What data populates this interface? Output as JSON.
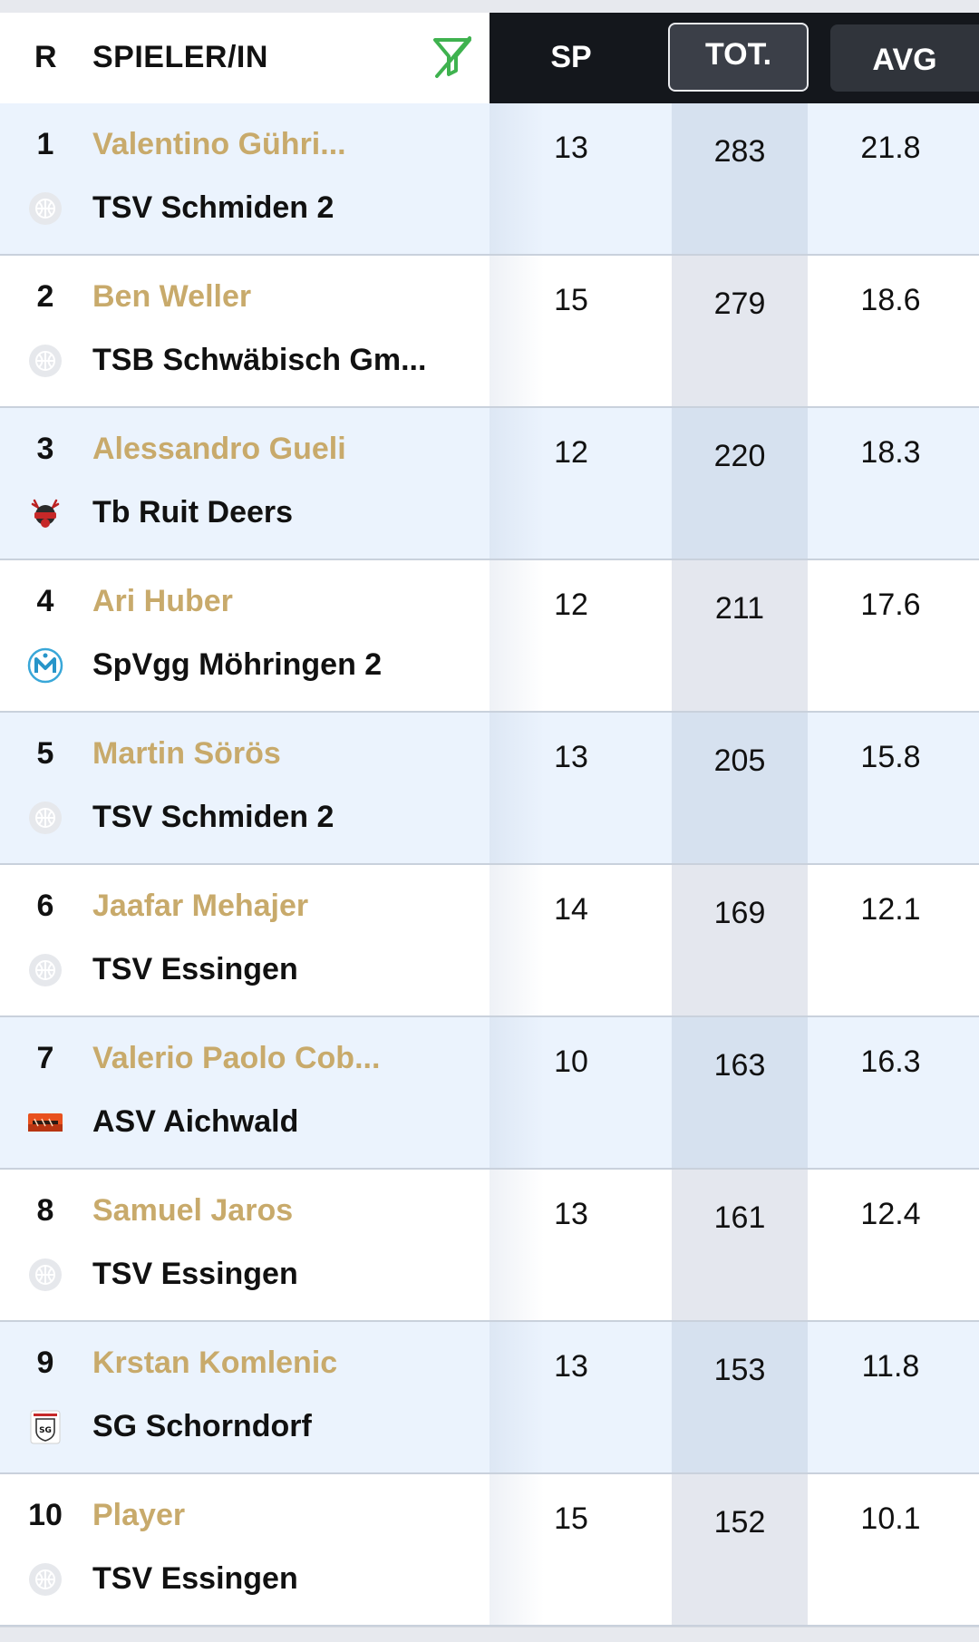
{
  "header": {
    "rank": "R",
    "player": "SPIELER/IN",
    "sp": "SP",
    "tot": "TOT.",
    "avg": "AVG",
    "filter_icon": "filter-slash-icon",
    "accent": "#3fb24f"
  },
  "colors": {
    "player_name": "#c8aa6b",
    "header_dark": "#14171c",
    "row_highlight": "#ebf3fd"
  },
  "rows": [
    {
      "rank": "1",
      "name": "Valentino Gühri...",
      "team": "TSV Schmiden 2",
      "logo": "basketball-placeholder-icon",
      "sp": "13",
      "tot": "283",
      "avg": "21.8"
    },
    {
      "rank": "2",
      "name": "Ben Weller",
      "team": "TSB Schwäbisch Gm...",
      "logo": "basketball-placeholder-icon",
      "sp": "15",
      "tot": "279",
      "avg": "18.6"
    },
    {
      "rank": "3",
      "name": "Alessandro Gueli",
      "team": "Tb Ruit Deers",
      "logo": "deer-logo-icon",
      "sp": "12",
      "tot": "220",
      "avg": "18.3"
    },
    {
      "rank": "4",
      "name": "Ari Huber",
      "team": "SpVgg Möhringen 2",
      "logo": "moehringen-logo-icon",
      "sp": "12",
      "tot": "211",
      "avg": "17.6"
    },
    {
      "rank": "5",
      "name": "Martin Sörös",
      "team": "TSV Schmiden 2",
      "logo": "basketball-placeholder-icon",
      "sp": "13",
      "tot": "205",
      "avg": "15.8"
    },
    {
      "rank": "6",
      "name": "Jaafar Mehajer",
      "team": "TSV Essingen",
      "logo": "basketball-placeholder-icon",
      "sp": "14",
      "tot": "169",
      "avg": "12.1"
    },
    {
      "rank": "7",
      "name": "Valerio Paolo Cob...",
      "team": "ASV Aichwald",
      "logo": "aichwald-logo-icon",
      "sp": "10",
      "tot": "163",
      "avg": "16.3"
    },
    {
      "rank": "8",
      "name": "Samuel Jaros",
      "team": "TSV Essingen",
      "logo": "basketball-placeholder-icon",
      "sp": "13",
      "tot": "161",
      "avg": "12.4"
    },
    {
      "rank": "9",
      "name": "Krstan Komlenic",
      "team": "SG Schorndorf",
      "logo": "sg-shield-logo-icon",
      "sp": "13",
      "tot": "153",
      "avg": "11.8"
    },
    {
      "rank": "10",
      "name": "Player",
      "team": "TSV Essingen",
      "logo": "basketball-placeholder-icon",
      "sp": "15",
      "tot": "152",
      "avg": "10.1"
    }
  ]
}
